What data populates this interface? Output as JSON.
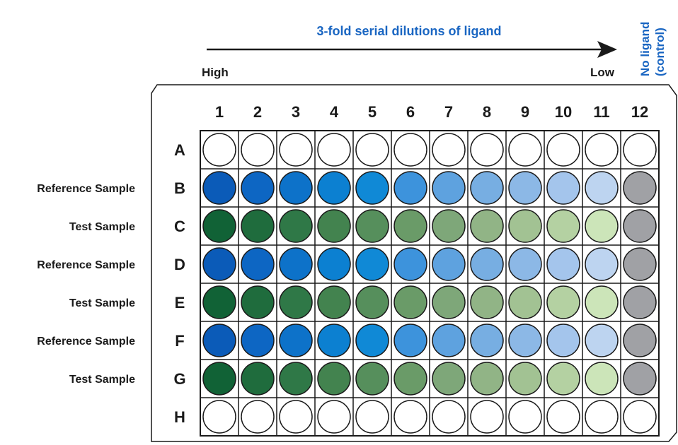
{
  "header": {
    "title": "3-fold serial dilutions of ligand",
    "high_label": "High",
    "low_label": "Low",
    "control_label_line1": "No ligand",
    "control_label_line2": "(control)"
  },
  "plate": {
    "columns": [
      "1",
      "2",
      "3",
      "4",
      "5",
      "6",
      "7",
      "8",
      "9",
      "10",
      "11",
      "12"
    ],
    "rows": [
      "A",
      "B",
      "C",
      "D",
      "E",
      "F",
      "G",
      "H"
    ]
  },
  "sample_labels": [
    {
      "row": "B",
      "text": "Reference Sample"
    },
    {
      "row": "C",
      "text": "Test Sample"
    },
    {
      "row": "D",
      "text": "Reference Sample"
    },
    {
      "row": "E",
      "text": "Test Sample"
    },
    {
      "row": "F",
      "text": "Reference Sample"
    },
    {
      "row": "G",
      "text": "Test Sample"
    }
  ],
  "colors": {
    "title_blue": "#1a66c2",
    "empty_well": "#ffffff",
    "control_well": "#a0a1a5",
    "outline": "#1a1a1a",
    "reference_gradient": [
      "#0b5bb8",
      "#0d66c3",
      "#0d72c9",
      "#0c80d1",
      "#1089d6",
      "#3d93dc",
      "#5ea2df",
      "#77aee2",
      "#8cb8e6",
      "#a4c5ec",
      "#bdd4f0",
      "#a0a1a5"
    ],
    "test_gradient": [
      "#116236",
      "#1f6c3d",
      "#2f7847",
      "#43834f",
      "#568f5c",
      "#6a9b68",
      "#7ea779",
      "#91b486",
      "#a2c293",
      "#b4d1a2",
      "#cce5b9",
      "#a0a1a5"
    ]
  },
  "row_types": {
    "A": "empty",
    "B": "reference",
    "C": "test",
    "D": "reference",
    "E": "test",
    "F": "reference",
    "G": "test",
    "H": "empty"
  }
}
